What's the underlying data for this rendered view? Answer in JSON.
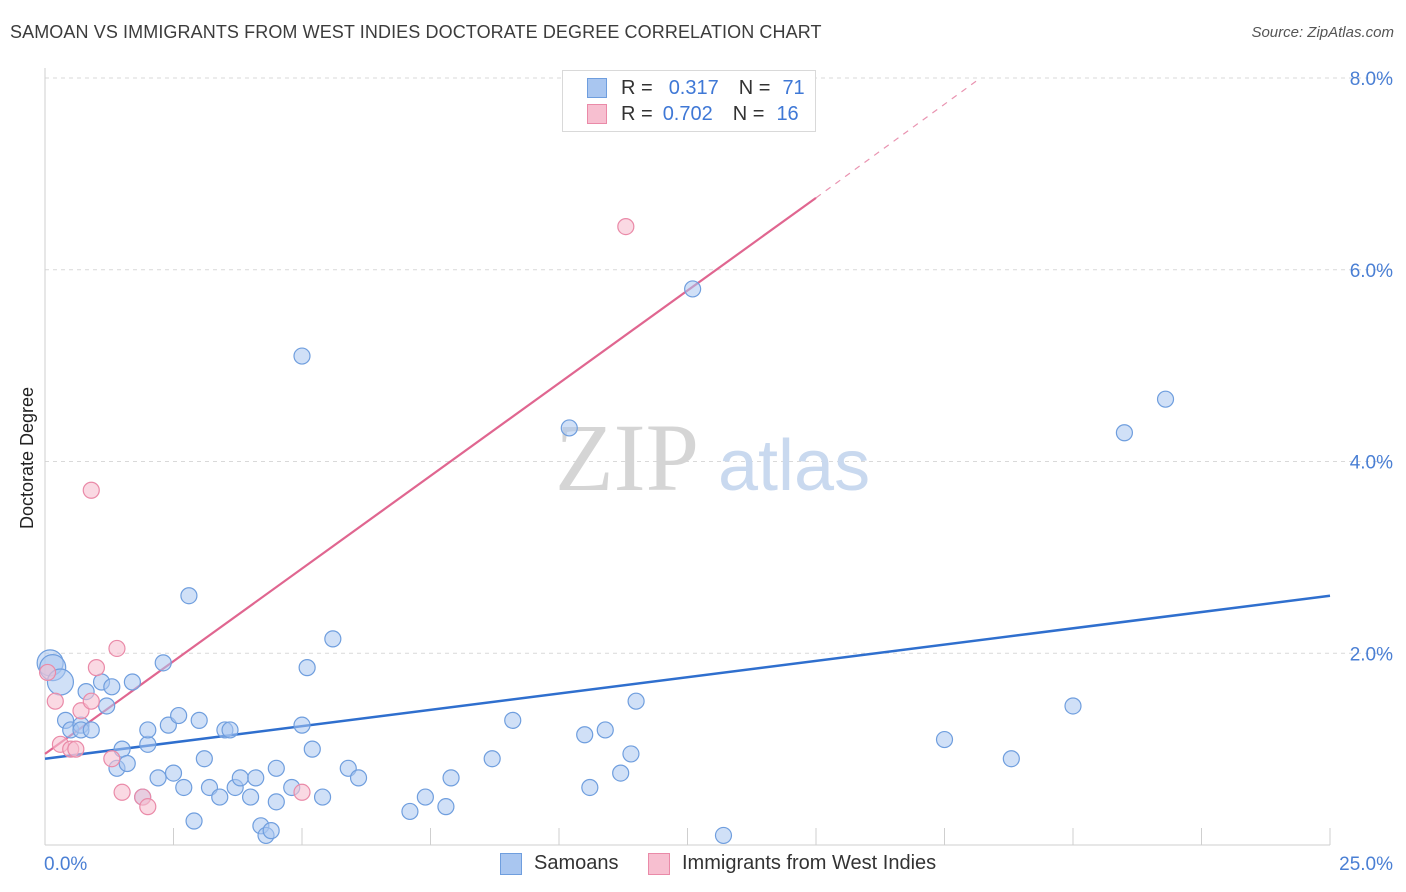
{
  "header": {
    "title": "SAMOAN VS IMMIGRANTS FROM WEST INDIES DOCTORATE DEGREE CORRELATION CHART",
    "source": "Source: ZipAtlas.com"
  },
  "watermark": {
    "zip": "ZIP",
    "atlas": "atlas"
  },
  "legend": {
    "rows": [
      {
        "r_label": "R =",
        "r_value": "0.317",
        "n_label": "N =",
        "n_value": "71"
      },
      {
        "r_label": "R =",
        "r_value": "0.702",
        "n_label": "N =",
        "n_value": "16"
      }
    ]
  },
  "bottom_legend": {
    "samoans": "Samoans",
    "west_indies": "Immigrants from West Indies"
  },
  "colors": {
    "samoans_fill": "#a9c6f0",
    "samoans_stroke": "#6f9ede",
    "samoans_line": "#2f6fce",
    "wi_fill": "#f7bfd0",
    "wi_stroke": "#ea8aa8",
    "wi_line": "#e06690",
    "grid": "#d9d9d9"
  },
  "chart_data": {
    "type": "scatter",
    "title": "SAMOAN VS IMMIGRANTS FROM WEST INDIES DOCTORATE DEGREE CORRELATION CHART",
    "xlabel": "",
    "ylabel": "Doctorate Degree",
    "xlim": [
      0,
      25
    ],
    "ylim": [
      0,
      8.0
    ],
    "x_tick_labels": [
      "0.0%",
      "25.0%"
    ],
    "y_ticks": [
      2.0,
      4.0,
      6.0,
      8.0
    ],
    "y_tick_labels": [
      "2.0%",
      "4.0%",
      "6.0%",
      "8.0%"
    ],
    "grid": true,
    "series": [
      {
        "name": "Samoans",
        "points": [
          [
            0.1,
            1.9
          ],
          [
            0.15,
            1.85
          ],
          [
            0.3,
            1.7
          ],
          [
            0.4,
            1.3
          ],
          [
            0.5,
            1.2
          ],
          [
            0.7,
            1.25
          ],
          [
            0.7,
            1.2
          ],
          [
            0.9,
            1.2
          ],
          [
            0.8,
            1.6
          ],
          [
            1.1,
            1.7
          ],
          [
            1.2,
            1.45
          ],
          [
            1.3,
            1.65
          ],
          [
            1.5,
            1.0
          ],
          [
            1.4,
            0.8
          ],
          [
            1.6,
            0.85
          ],
          [
            1.7,
            1.7
          ],
          [
            1.9,
            0.5
          ],
          [
            2.0,
            1.05
          ],
          [
            2.0,
            1.2
          ],
          [
            2.2,
            0.7
          ],
          [
            2.3,
            1.9
          ],
          [
            2.4,
            1.25
          ],
          [
            2.5,
            0.75
          ],
          [
            2.6,
            1.35
          ],
          [
            2.7,
            0.6
          ],
          [
            2.8,
            2.6
          ],
          [
            2.9,
            0.25
          ],
          [
            3.0,
            1.3
          ],
          [
            3.1,
            0.9
          ],
          [
            3.2,
            0.6
          ],
          [
            3.4,
            0.5
          ],
          [
            3.5,
            1.2
          ],
          [
            3.6,
            1.2
          ],
          [
            3.7,
            0.6
          ],
          [
            3.8,
            0.7
          ],
          [
            4.0,
            0.5
          ],
          [
            4.1,
            0.7
          ],
          [
            4.2,
            0.2
          ],
          [
            4.3,
            0.1
          ],
          [
            4.4,
            0.15
          ],
          [
            4.5,
            0.8
          ],
          [
            4.5,
            0.45
          ],
          [
            4.8,
            0.6
          ],
          [
            5.0,
            5.1
          ],
          [
            5.0,
            1.25
          ],
          [
            5.1,
            1.85
          ],
          [
            5.2,
            1.0
          ],
          [
            5.4,
            0.5
          ],
          [
            5.6,
            2.15
          ],
          [
            5.9,
            0.8
          ],
          [
            6.1,
            0.7
          ],
          [
            7.1,
            0.35
          ],
          [
            7.4,
            0.5
          ],
          [
            7.8,
            0.4
          ],
          [
            7.9,
            0.7
          ],
          [
            8.7,
            0.9
          ],
          [
            9.1,
            1.3
          ],
          [
            10.2,
            4.35
          ],
          [
            10.5,
            1.15
          ],
          [
            10.6,
            0.6
          ],
          [
            10.9,
            1.2
          ],
          [
            11.2,
            0.75
          ],
          [
            11.4,
            0.95
          ],
          [
            11.5,
            1.5
          ],
          [
            12.6,
            5.8
          ],
          [
            13.2,
            0.1
          ],
          [
            17.5,
            1.1
          ],
          [
            18.8,
            0.9
          ],
          [
            20.0,
            1.45
          ],
          [
            21.0,
            4.3
          ],
          [
            21.8,
            4.65
          ]
        ],
        "trendline": {
          "x": [
            0,
            25
          ],
          "y": [
            0.9,
            2.6
          ]
        }
      },
      {
        "name": "Immigrants from West Indies",
        "points": [
          [
            0.05,
            1.8
          ],
          [
            0.2,
            1.5
          ],
          [
            0.3,
            1.05
          ],
          [
            0.5,
            1.0
          ],
          [
            0.6,
            1.0
          ],
          [
            0.7,
            1.4
          ],
          [
            0.9,
            1.5
          ],
          [
            0.9,
            3.7
          ],
          [
            1.0,
            1.85
          ],
          [
            1.3,
            0.9
          ],
          [
            1.4,
            2.05
          ],
          [
            1.5,
            0.55
          ],
          [
            1.9,
            0.5
          ],
          [
            2.0,
            0.4
          ],
          [
            5.0,
            0.55
          ],
          [
            11.3,
            6.45
          ]
        ],
        "trendline": {
          "x": [
            0,
            15.0
          ],
          "y": [
            0.95,
            6.75
          ],
          "dashed_extension": {
            "x": [
              15.0,
              18.2
            ],
            "y": [
              6.75,
              8.0
            ]
          }
        }
      }
    ]
  }
}
